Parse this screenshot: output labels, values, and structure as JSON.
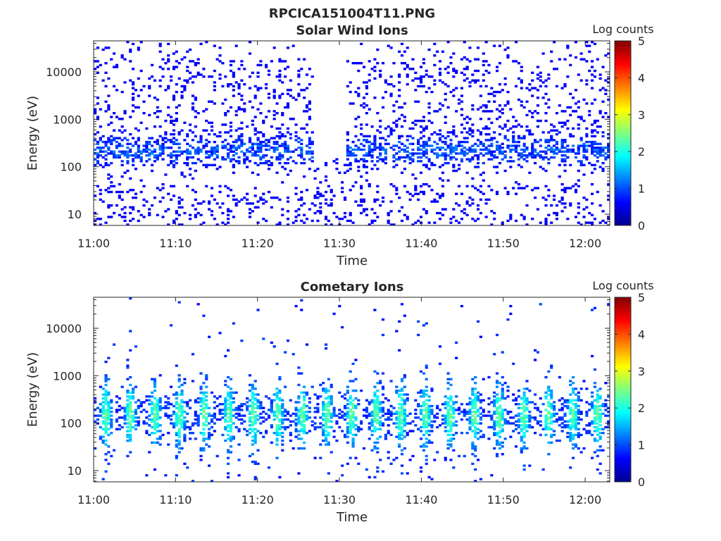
{
  "figure": {
    "title": "RPCICA151004T11.PNG"
  },
  "chart_data": [
    {
      "type": "heatmap",
      "title": "Solar Wind Ions",
      "xlabel": "Time",
      "ylabel": "Energy (eV)",
      "x_ticks": [
        "11:00",
        "11:10",
        "11:20",
        "11:30",
        "11:40",
        "11:50",
        "12:00"
      ],
      "x_range": [
        "11:00",
        "12:03"
      ],
      "y_scale": "log",
      "y_ticks": [
        10,
        100,
        1000,
        10000
      ],
      "y_range": [
        5.8,
        45000
      ],
      "colorbar": {
        "label": "Log counts",
        "ticks": [
          0,
          1,
          2,
          3,
          4,
          5
        ],
        "range": [
          0,
          5
        ],
        "colormap": "jet"
      },
      "time_gap": [
        "11:27",
        "11:31"
      ],
      "grid": false
    },
    {
      "type": "heatmap",
      "title": "Cometary Ions",
      "xlabel": "Time",
      "ylabel": "Energy (eV)",
      "x_ticks": [
        "11:00",
        "11:10",
        "11:20",
        "11:30",
        "11:40",
        "11:50",
        "12:00"
      ],
      "x_range": [
        "11:00",
        "12:03"
      ],
      "y_scale": "log",
      "y_ticks": [
        10,
        100,
        1000,
        10000
      ],
      "y_range": [
        5.8,
        45000
      ],
      "colorbar": {
        "label": "Log counts",
        "ticks": [
          0,
          1,
          2,
          3,
          4,
          5
        ],
        "range": [
          0,
          5
        ],
        "colormap": "jet"
      },
      "burst_period_minutes": 3,
      "peak_energy_eV": 150,
      "grid": false
    }
  ]
}
